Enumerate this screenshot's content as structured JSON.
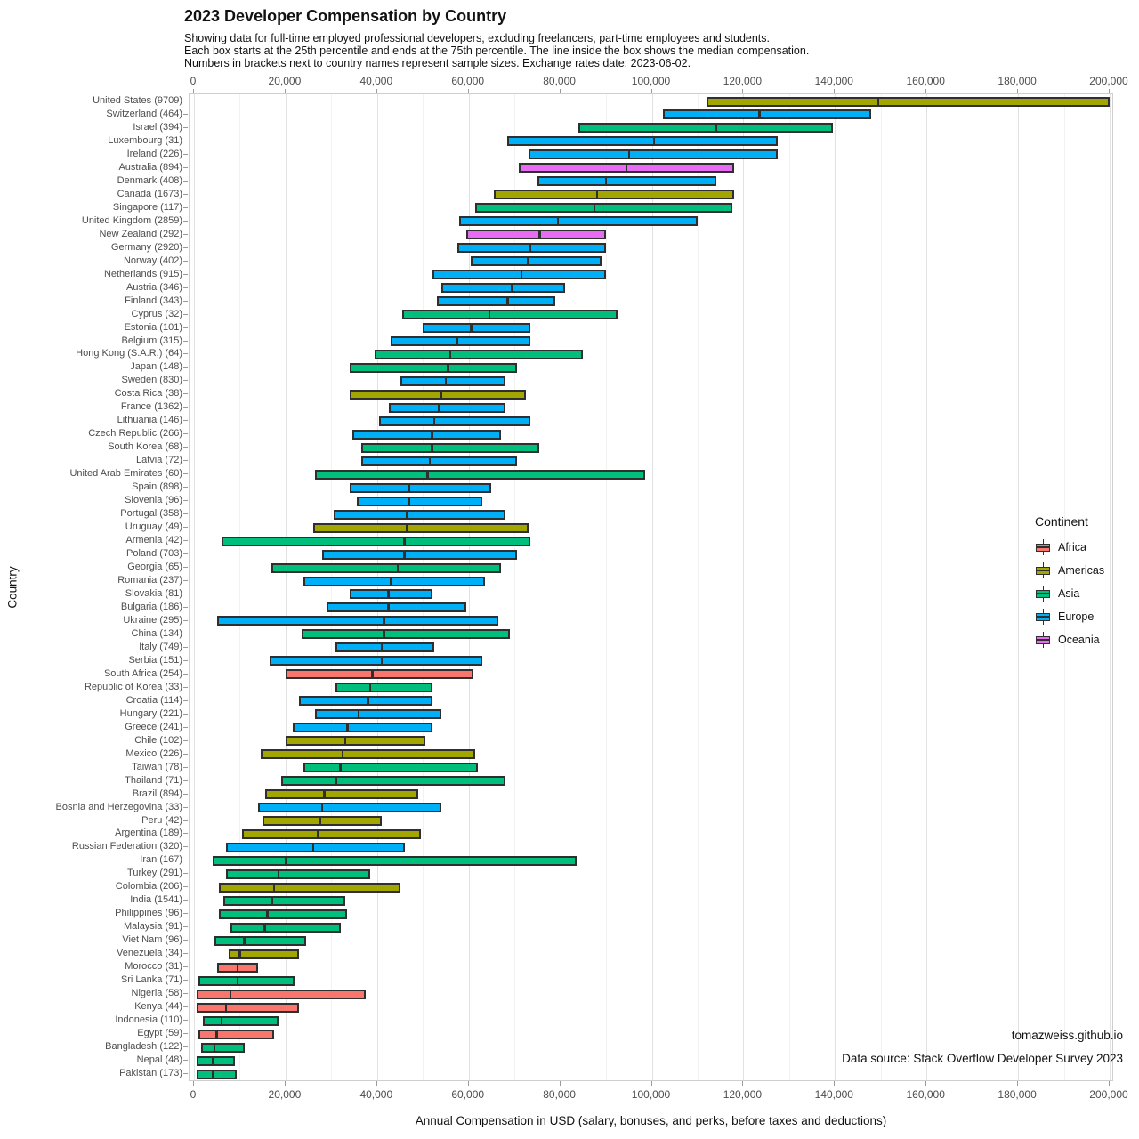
{
  "header": {
    "title": "2023 Developer Compensation by Country",
    "subtitle_lines": [
      "Showing data for full-time employed professional developers, excluding freelancers, part-time employees and students.",
      "Each box starts at the 25th percentile and ends at the 75th percentile. The line inside the box shows the median compensation.",
      "Numbers in brackets next to country names represent sample sizes. Exchange rates date: 2023-06-02."
    ]
  },
  "axes": {
    "x_title": "Annual Compensation in USD (salary, bonuses, and perks, before taxes and deductions)",
    "y_title": "Country",
    "x_ticks": [
      {
        "value": 0,
        "label": "0"
      },
      {
        "value": 20000,
        "label": "20,000"
      },
      {
        "value": 40000,
        "label": "40,000"
      },
      {
        "value": 60000,
        "label": "60,000"
      },
      {
        "value": 80000,
        "label": "80,000"
      },
      {
        "value": 100000,
        "label": "100,000"
      },
      {
        "value": 120000,
        "label": "120,000"
      },
      {
        "value": 140000,
        "label": "140,000"
      },
      {
        "value": 160000,
        "label": "160,000"
      },
      {
        "value": 180000,
        "label": "180,000"
      },
      {
        "value": 200000,
        "label": "200,000"
      }
    ]
  },
  "legend": {
    "title": "Continent",
    "items": [
      {
        "label": "Africa",
        "color": "#F8766D"
      },
      {
        "label": "Americas",
        "color": "#A3A500"
      },
      {
        "label": "Asia",
        "color": "#00BF7D"
      },
      {
        "label": "Europe",
        "color": "#00B0F6"
      },
      {
        "label": "Oceania",
        "color": "#E76BF3"
      }
    ]
  },
  "attribution": {
    "line1": "tomazweiss.github.io",
    "line2": "Data source: Stack Overflow Developer Survey 2023"
  },
  "colors": {
    "Africa": "#F8766D",
    "Americas": "#A3A500",
    "Asia": "#00BF7D",
    "Europe": "#00B0F6",
    "Oceania": "#E76BF3",
    "box_border": "#2f2f2f",
    "grid_major": "#e2e2e2",
    "grid_minor": "#f2f2f2",
    "panel_border": "#cfcfcf"
  },
  "chart_data": {
    "type": "bar",
    "variant": "horizontal-box-p25-median-p75",
    "title": "2023 Developer Compensation by Country",
    "xlabel": "Annual Compensation in USD (salary, bonuses, and perks, before taxes and deductions)",
    "ylabel": "Country",
    "xlim": [
      0,
      200000
    ],
    "grid": true,
    "x_major_step": 20000,
    "x_minor_step": 10000,
    "legend_position": "right-inside",
    "rows": [
      {
        "country": "United States",
        "n": 9709,
        "continent": "Americas",
        "p25": 112000,
        "median": 149500,
        "p75": 200000
      },
      {
        "country": "Switzerland",
        "n": 464,
        "continent": "Europe",
        "p25": 102500,
        "median": 123500,
        "p75": 148000
      },
      {
        "country": "Israel",
        "n": 394,
        "continent": "Asia",
        "p25": 84000,
        "median": 114000,
        "p75": 139500
      },
      {
        "country": "Luxembourg",
        "n": 31,
        "continent": "Europe",
        "p25": 68500,
        "median": 100500,
        "p75": 127500
      },
      {
        "country": "Ireland",
        "n": 226,
        "continent": "Europe",
        "p25": 73000,
        "median": 95000,
        "p75": 127500
      },
      {
        "country": "Australia",
        "n": 894,
        "continent": "Oceania",
        "p25": 71000,
        "median": 94500,
        "p75": 118000
      },
      {
        "country": "Denmark",
        "n": 408,
        "continent": "Europe",
        "p25": 75000,
        "median": 90000,
        "p75": 114000
      },
      {
        "country": "Canada",
        "n": 1673,
        "continent": "Americas",
        "p25": 65500,
        "median": 88000,
        "p75": 118000
      },
      {
        "country": "Singapore",
        "n": 117,
        "continent": "Asia",
        "p25": 61500,
        "median": 87500,
        "p75": 117500
      },
      {
        "country": "United Kingdom",
        "n": 2859,
        "continent": "Europe",
        "p25": 58000,
        "median": 79500,
        "p75": 110000
      },
      {
        "country": "New Zealand",
        "n": 292,
        "continent": "Oceania",
        "p25": 59500,
        "median": 75500,
        "p75": 90000
      },
      {
        "country": "Germany",
        "n": 2920,
        "continent": "Europe",
        "p25": 57500,
        "median": 73500,
        "p75": 90000
      },
      {
        "country": "Norway",
        "n": 402,
        "continent": "Europe",
        "p25": 60500,
        "median": 73000,
        "p75": 89000
      },
      {
        "country": "Netherlands",
        "n": 915,
        "continent": "Europe",
        "p25": 52000,
        "median": 71500,
        "p75": 90000
      },
      {
        "country": "Austria",
        "n": 346,
        "continent": "Europe",
        "p25": 54000,
        "median": 69500,
        "p75": 81000
      },
      {
        "country": "Finland",
        "n": 343,
        "continent": "Europe",
        "p25": 53000,
        "median": 68500,
        "p75": 79000
      },
      {
        "country": "Cyprus",
        "n": 32,
        "continent": "Asia",
        "p25": 45500,
        "median": 64500,
        "p75": 92500
      },
      {
        "country": "Estonia",
        "n": 101,
        "continent": "Europe",
        "p25": 50000,
        "median": 60500,
        "p75": 73500
      },
      {
        "country": "Belgium",
        "n": 315,
        "continent": "Europe",
        "p25": 43000,
        "median": 57500,
        "p75": 73500
      },
      {
        "country": "Hong Kong (S.A.R.)",
        "n": 64,
        "continent": "Asia",
        "p25": 39500,
        "median": 56000,
        "p75": 85000
      },
      {
        "country": "Japan",
        "n": 148,
        "continent": "Asia",
        "p25": 34000,
        "median": 55500,
        "p75": 70500
      },
      {
        "country": "Sweden",
        "n": 830,
        "continent": "Europe",
        "p25": 45000,
        "median": 55000,
        "p75": 68000
      },
      {
        "country": "Costa Rica",
        "n": 38,
        "continent": "Americas",
        "p25": 34000,
        "median": 54000,
        "p75": 72500
      },
      {
        "country": "France",
        "n": 1362,
        "continent": "Europe",
        "p25": 42500,
        "median": 53500,
        "p75": 68000
      },
      {
        "country": "Lithuania",
        "n": 146,
        "continent": "Europe",
        "p25": 40500,
        "median": 52500,
        "p75": 73500
      },
      {
        "country": "Czech Republic",
        "n": 266,
        "continent": "Europe",
        "p25": 34500,
        "median": 52000,
        "p75": 67000
      },
      {
        "country": "South Korea",
        "n": 68,
        "continent": "Asia",
        "p25": 36500,
        "median": 52000,
        "p75": 75500
      },
      {
        "country": "Latvia",
        "n": 72,
        "continent": "Europe",
        "p25": 36500,
        "median": 51500,
        "p75": 70500
      },
      {
        "country": "United Arab Emirates",
        "n": 60,
        "continent": "Asia",
        "p25": 26500,
        "median": 51000,
        "p75": 98500
      },
      {
        "country": "Spain",
        "n": 898,
        "continent": "Europe",
        "p25": 34000,
        "median": 47000,
        "p75": 65000
      },
      {
        "country": "Slovenia",
        "n": 96,
        "continent": "Europe",
        "p25": 35500,
        "median": 47000,
        "p75": 63000
      },
      {
        "country": "Portugal",
        "n": 358,
        "continent": "Europe",
        "p25": 30500,
        "median": 46500,
        "p75": 68000
      },
      {
        "country": "Uruguay",
        "n": 49,
        "continent": "Americas",
        "p25": 26000,
        "median": 46500,
        "p75": 73000
      },
      {
        "country": "Armenia",
        "n": 42,
        "continent": "Asia",
        "p25": 6000,
        "median": 46000,
        "p75": 73500
      },
      {
        "country": "Poland",
        "n": 703,
        "continent": "Europe",
        "p25": 28000,
        "median": 46000,
        "p75": 70500
      },
      {
        "country": "Georgia",
        "n": 65,
        "continent": "Asia",
        "p25": 17000,
        "median": 44500,
        "p75": 67000
      },
      {
        "country": "Romania",
        "n": 237,
        "continent": "Europe",
        "p25": 24000,
        "median": 43000,
        "p75": 63500
      },
      {
        "country": "Slovakia",
        "n": 81,
        "continent": "Europe",
        "p25": 34000,
        "median": 42500,
        "p75": 52000
      },
      {
        "country": "Bulgaria",
        "n": 186,
        "continent": "Europe",
        "p25": 29000,
        "median": 42500,
        "p75": 59500
      },
      {
        "country": "Ukraine",
        "n": 295,
        "continent": "Europe",
        "p25": 5000,
        "median": 41500,
        "p75": 66500
      },
      {
        "country": "China",
        "n": 134,
        "continent": "Asia",
        "p25": 23500,
        "median": 41500,
        "p75": 69000
      },
      {
        "country": "Italy",
        "n": 749,
        "continent": "Europe",
        "p25": 31000,
        "median": 41000,
        "p75": 52500
      },
      {
        "country": "Serbia",
        "n": 151,
        "continent": "Europe",
        "p25": 16500,
        "median": 41000,
        "p75": 63000
      },
      {
        "country": "South Africa",
        "n": 254,
        "continent": "Africa",
        "p25": 20000,
        "median": 39000,
        "p75": 61000
      },
      {
        "country": "Republic of Korea",
        "n": 33,
        "continent": "Asia",
        "p25": 31000,
        "median": 38500,
        "p75": 52000
      },
      {
        "country": "Croatia",
        "n": 114,
        "continent": "Europe",
        "p25": 23000,
        "median": 38000,
        "p75": 52000
      },
      {
        "country": "Hungary",
        "n": 221,
        "continent": "Europe",
        "p25": 26500,
        "median": 36000,
        "p75": 54000
      },
      {
        "country": "Greece",
        "n": 241,
        "continent": "Europe",
        "p25": 21500,
        "median": 33500,
        "p75": 52000
      },
      {
        "country": "Chile",
        "n": 102,
        "continent": "Americas",
        "p25": 20000,
        "median": 33000,
        "p75": 50500
      },
      {
        "country": "Mexico",
        "n": 226,
        "continent": "Americas",
        "p25": 14500,
        "median": 32500,
        "p75": 61500
      },
      {
        "country": "Taiwan",
        "n": 78,
        "continent": "Asia",
        "p25": 24000,
        "median": 32000,
        "p75": 62000
      },
      {
        "country": "Thailand",
        "n": 71,
        "continent": "Asia",
        "p25": 19000,
        "median": 31000,
        "p75": 68000
      },
      {
        "country": "Brazil",
        "n": 894,
        "continent": "Americas",
        "p25": 15500,
        "median": 28500,
        "p75": 49000
      },
      {
        "country": "Bosnia and Herzegovina",
        "n": 33,
        "continent": "Europe",
        "p25": 14000,
        "median": 28000,
        "p75": 54000
      },
      {
        "country": "Peru",
        "n": 42,
        "continent": "Americas",
        "p25": 15000,
        "median": 27500,
        "p75": 41000
      },
      {
        "country": "Argentina",
        "n": 189,
        "continent": "Americas",
        "p25": 10500,
        "median": 27000,
        "p75": 49500
      },
      {
        "country": "Russian Federation",
        "n": 320,
        "continent": "Europe",
        "p25": 7000,
        "median": 26000,
        "p75": 46000
      },
      {
        "country": "Iran",
        "n": 167,
        "continent": "Asia",
        "p25": 4000,
        "median": 20000,
        "p75": 83500
      },
      {
        "country": "Turkey",
        "n": 291,
        "continent": "Asia",
        "p25": 7000,
        "median": 18500,
        "p75": 38500
      },
      {
        "country": "Colombia",
        "n": 206,
        "continent": "Americas",
        "p25": 5500,
        "median": 17500,
        "p75": 45000
      },
      {
        "country": "India",
        "n": 1541,
        "continent": "Asia",
        "p25": 6500,
        "median": 17000,
        "p75": 33000
      },
      {
        "country": "Philippines",
        "n": 96,
        "continent": "Asia",
        "p25": 5500,
        "median": 16000,
        "p75": 33500
      },
      {
        "country": "Malaysia",
        "n": 91,
        "continent": "Asia",
        "p25": 8000,
        "median": 15500,
        "p75": 32000
      },
      {
        "country": "Viet Nam",
        "n": 96,
        "continent": "Asia",
        "p25": 4500,
        "median": 11000,
        "p75": 24500
      },
      {
        "country": "Venezuela",
        "n": 34,
        "continent": "Americas",
        "p25": 7500,
        "median": 10000,
        "p75": 23000
      },
      {
        "country": "Morocco",
        "n": 31,
        "continent": "Africa",
        "p25": 5000,
        "median": 9500,
        "p75": 14000
      },
      {
        "country": "Sri Lanka",
        "n": 71,
        "continent": "Asia",
        "p25": 1000,
        "median": 9500,
        "p75": 22000
      },
      {
        "country": "Nigeria",
        "n": 58,
        "continent": "Africa",
        "p25": 500,
        "median": 8000,
        "p75": 37500
      },
      {
        "country": "Kenya",
        "n": 44,
        "continent": "Africa",
        "p25": 500,
        "median": 7000,
        "p75": 23000
      },
      {
        "country": "Indonesia",
        "n": 110,
        "continent": "Asia",
        "p25": 2000,
        "median": 6000,
        "p75": 18500
      },
      {
        "country": "Egypt",
        "n": 59,
        "continent": "Africa",
        "p25": 1000,
        "median": 5000,
        "p75": 17500
      },
      {
        "country": "Bangladesh",
        "n": 122,
        "continent": "Asia",
        "p25": 1500,
        "median": 4500,
        "p75": 11000
      },
      {
        "country": "Nepal",
        "n": 48,
        "continent": "Asia",
        "p25": 500,
        "median": 4200,
        "p75": 9000
      },
      {
        "country": "Pakistan",
        "n": 173,
        "continent": "Asia",
        "p25": 500,
        "median": 4100,
        "p75": 9300
      }
    ]
  }
}
